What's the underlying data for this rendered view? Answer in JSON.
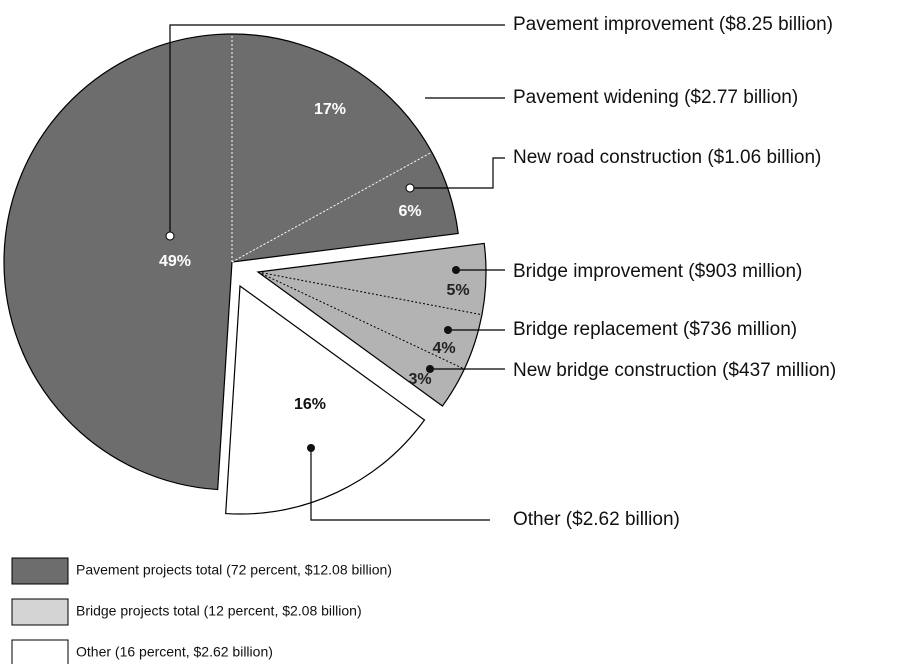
{
  "chart_data": {
    "type": "pie",
    "categories": [
      "Pavement improvement ($8.25 billion)",
      "Pavement widening ($2.77 billion)",
      "New road construction ($1.06 billion)",
      "Bridge improvement ($903 million)",
      "Bridge replacement ($736 million)",
      "New bridge construction ($437 million)",
      "Other ($2.62 billion)"
    ],
    "values": [
      49,
      17,
      6,
      5,
      4,
      3,
      16
    ],
    "value_labels": [
      "49%",
      "17%",
      "6%",
      "5%",
      "4%",
      "3%",
      "16%"
    ],
    "colors": [
      "#6d6d6d",
      "#6d6d6d",
      "#6d6d6d",
      "#b3b3b3",
      "#b3b3b3",
      "#b3b3b3",
      "#ffffff"
    ],
    "legend": [
      {
        "label": "Pavement projects total (72 percent, $12.08 billion)",
        "color": "#6d6d6d"
      },
      {
        "label": "Bridge projects total (12 percent, $2.08 billion)",
        "color": "#d4d4d4"
      },
      {
        "label": "Other (16 percent, $2.62 billion)",
        "color": "#ffffff"
      }
    ]
  }
}
